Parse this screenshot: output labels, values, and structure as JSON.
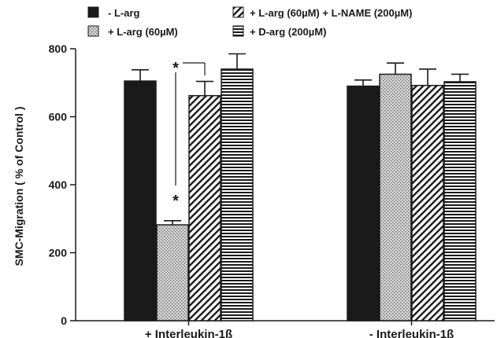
{
  "chart_data": {
    "type": "bar",
    "title": "",
    "xlabel": "",
    "ylabel": "SMC-Migration  ( % of Control )",
    "ylim": [
      0,
      800
    ],
    "yticks": [
      0,
      200,
      400,
      600,
      800
    ],
    "grid": false,
    "legend_position": "top",
    "categories": [
      "+ Interleukin-1ß",
      "- Interleukin-1ß"
    ],
    "series": [
      {
        "name": "- L-arg",
        "pattern": "solid",
        "color": "#1a1a1a",
        "values": [
          705,
          690
        ],
        "errors": [
          33,
          18
        ]
      },
      {
        "name": "+ L-arg (60µM)",
        "pattern": "dots",
        "color": "#c8c8c8",
        "values": [
          282,
          725
        ],
        "errors": [
          12,
          33
        ]
      },
      {
        "name": "+ L-arg (60µM) + L-NAME (200µM)",
        "pattern": "diagonal",
        "color": "#1a1a1a",
        "values": [
          662,
          692
        ],
        "errors": [
          42,
          48
        ]
      },
      {
        "name": "+ D-arg (200µM)",
        "pattern": "horizontal",
        "color": "#1a1a1a",
        "values": [
          740,
          703
        ],
        "errors": [
          45,
          22
        ]
      }
    ],
    "annotations": [
      {
        "text": "*",
        "near": "top"
      },
      {
        "text": "*",
        "near": "middle"
      }
    ]
  }
}
